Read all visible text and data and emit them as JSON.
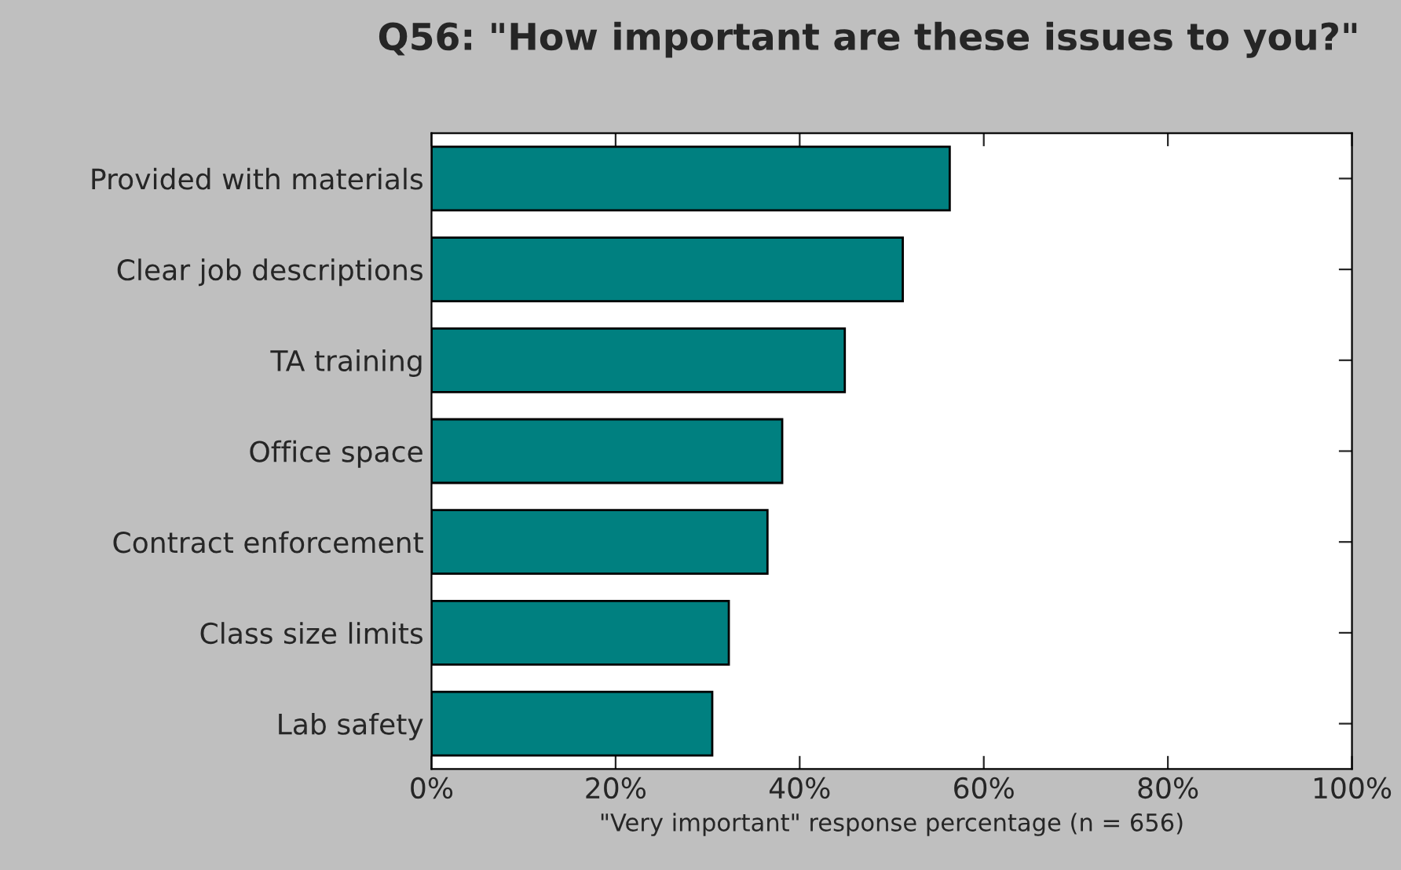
{
  "chart_data": {
    "type": "bar",
    "orientation": "horizontal",
    "title": "Q56: \"How important are these issues to you?\"",
    "xlabel": "\"Very important\" response percentage (n = 656)",
    "categories": [
      "Provided with materials",
      "Clear job descriptions",
      "TA training",
      "Office space",
      "Contract enforcement",
      "Class size limits",
      "Lab safety"
    ],
    "values": [
      56.3,
      51.2,
      44.9,
      38.1,
      36.5,
      32.3,
      30.5
    ],
    "color": "#008080",
    "xlim": [
      0,
      100
    ],
    "xticks": [
      {
        "value": 0,
        "label": "0%"
      },
      {
        "value": 20,
        "label": "20%"
      },
      {
        "value": 40,
        "label": "40%"
      },
      {
        "value": 60,
        "label": "60%"
      },
      {
        "value": 80,
        "label": "80%"
      },
      {
        "value": 100,
        "label": "100%"
      }
    ],
    "grid": false,
    "legend": false
  }
}
